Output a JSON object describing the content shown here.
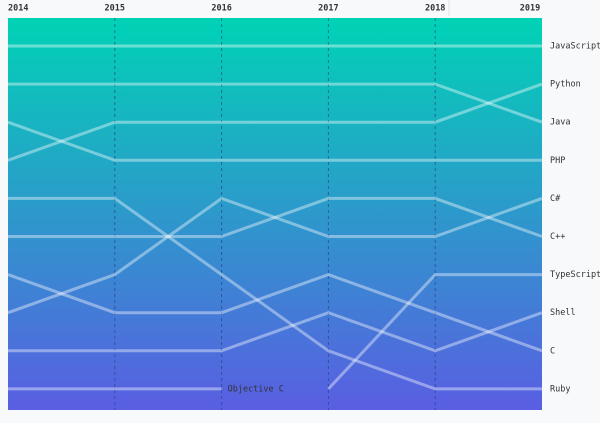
{
  "chart_data": {
    "type": "bump",
    "categories": [
      "2014",
      "2015",
      "2016",
      "2017",
      "2018",
      "2019"
    ],
    "series": [
      {
        "name": "JavaScript",
        "values": [
          1,
          1,
          1,
          1,
          1,
          1
        ]
      },
      {
        "name": "Python",
        "values": [
          4,
          3,
          3,
          3,
          3,
          2
        ]
      },
      {
        "name": "Java",
        "values": [
          2,
          2,
          2,
          2,
          2,
          3
        ]
      },
      {
        "name": "PHP",
        "values": [
          3,
          4,
          4,
          4,
          4,
          4
        ]
      },
      {
        "name": "C#",
        "values": [
          8,
          7,
          5,
          6,
          6,
          5
        ]
      },
      {
        "name": "C++",
        "values": [
          6,
          6,
          6,
          5,
          5,
          6
        ]
      },
      {
        "name": "TypeScript",
        "values": [
          null,
          null,
          null,
          10,
          7,
          7
        ]
      },
      {
        "name": "Shell",
        "values": [
          9,
          9,
          9,
          8,
          9,
          8
        ]
      },
      {
        "name": "C",
        "values": [
          7,
          8,
          8,
          7,
          8,
          9
        ]
      },
      {
        "name": "Ruby",
        "values": [
          5,
          5,
          7,
          9,
          10,
          10
        ]
      },
      {
        "name": "Objective C",
        "values": [
          10,
          10,
          10,
          null,
          null,
          null
        ]
      }
    ],
    "gradient": [
      "#00d3b5",
      "#5a5ee2"
    ],
    "line_color": "#ffffff"
  }
}
